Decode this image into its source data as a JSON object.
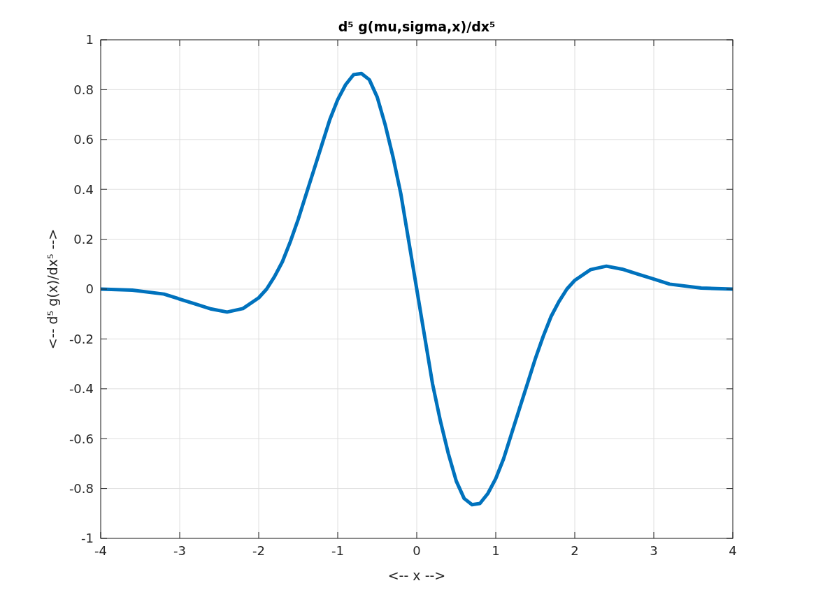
{
  "chart_data": {
    "type": "line",
    "title": "d⁵ g(mu,sigma,x)/dx⁵",
    "xlabel": "<-- x -->",
    "ylabel": "<-- d⁵ g(x)/dx⁵ -->",
    "x": [
      -4,
      -3.6,
      -3.2,
      -3,
      -2.8,
      -2.6,
      -2.4,
      -2.2,
      -2,
      -1.9,
      -1.8,
      -1.7,
      -1.6,
      -1.5,
      -1.4,
      -1.3,
      -1.2,
      -1.1,
      -1,
      -0.9,
      -0.8,
      -0.7,
      -0.6,
      -0.5,
      -0.4,
      -0.3,
      -0.2,
      -0.1,
      0,
      0.1,
      0.2,
      0.3,
      0.4,
      0.5,
      0.6,
      0.7,
      0.8,
      0.9,
      1,
      1.1,
      1.2,
      1.3,
      1.4,
      1.5,
      1.6,
      1.7,
      1.8,
      1.9,
      2,
      2.2,
      2.4,
      2.6,
      2.8,
      3,
      3.2,
      3.6,
      4
    ],
    "series": [
      {
        "color": "#0072bd",
        "values": [
          0,
          -0.004,
          -0.02,
          -0.04,
          -0.06,
          -0.08,
          -0.092,
          -0.078,
          -0.035,
          0,
          0.05,
          0.11,
          0.19,
          0.28,
          0.38,
          0.48,
          0.58,
          0.68,
          0.76,
          0.82,
          0.86,
          0.865,
          0.84,
          0.77,
          0.66,
          0.53,
          0.38,
          0.19,
          0,
          -0.19,
          -0.38,
          -0.53,
          -0.66,
          -0.77,
          -0.84,
          -0.865,
          -0.86,
          -0.82,
          -0.76,
          -0.68,
          -0.58,
          -0.48,
          -0.38,
          -0.28,
          -0.19,
          -0.11,
          -0.05,
          0,
          0.035,
          0.078,
          0.092,
          0.08,
          0.06,
          0.04,
          0.02,
          0.004,
          0
        ]
      }
    ],
    "xlim": [
      -4,
      4
    ],
    "xticks": [
      -4,
      -3,
      -2,
      -1,
      0,
      1,
      2,
      3,
      4
    ],
    "ylim": [
      -1,
      1
    ],
    "yticks": [
      -1,
      -0.8,
      -0.6,
      -0.4,
      -0.2,
      0,
      0.2,
      0.4,
      0.6,
      0.8,
      1
    ],
    "grid": true,
    "marker": "none",
    "line_style": "solid"
  }
}
